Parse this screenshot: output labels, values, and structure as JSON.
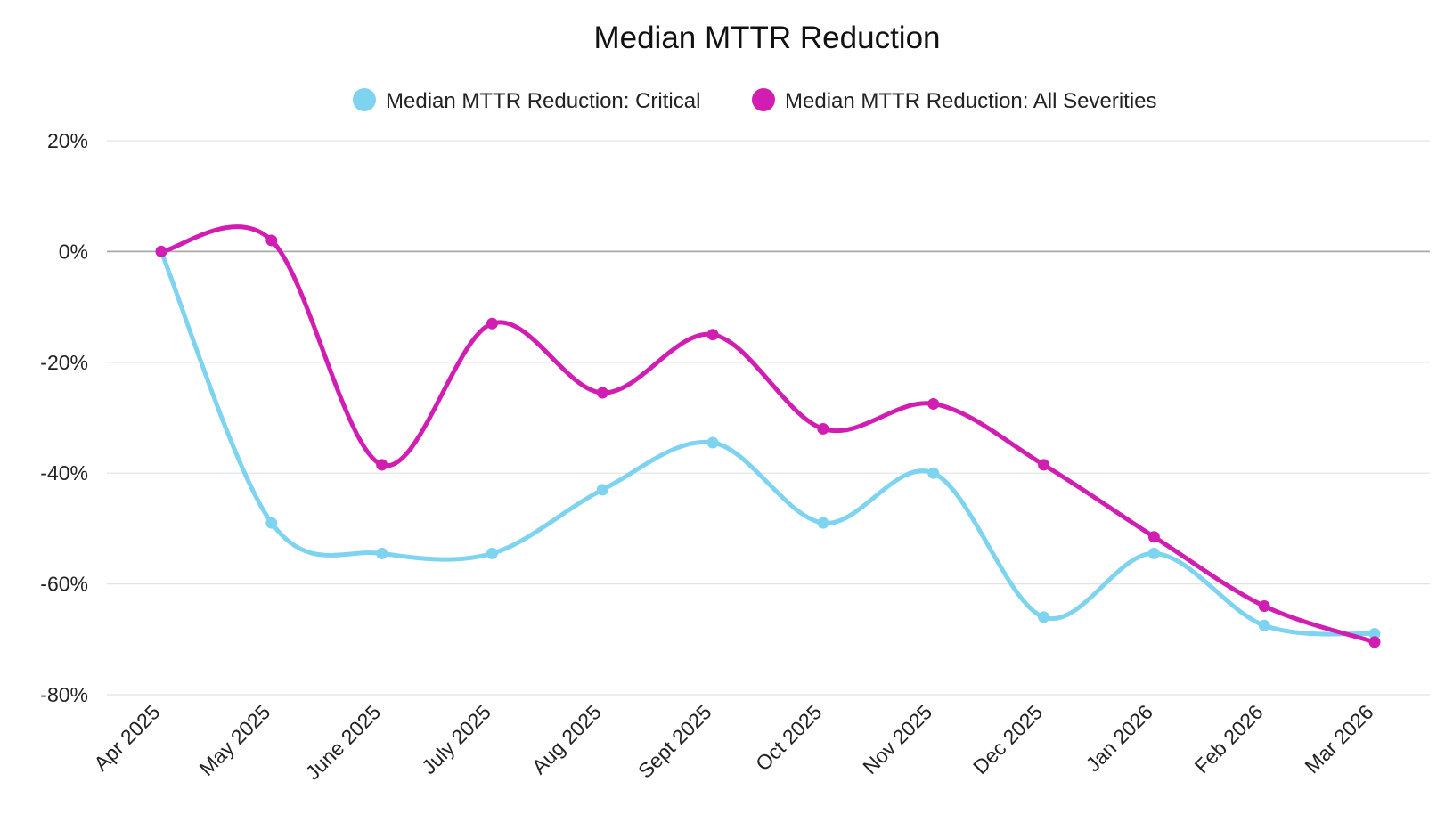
{
  "chart_data": {
    "type": "line",
    "title": "Median MTTR Reduction",
    "categories": [
      "Apr 2025",
      "May 2025",
      "June 2025",
      "July 2025",
      "Aug 2025",
      "Sept 2025",
      "Oct 2025",
      "Nov 2025",
      "Dec 2025",
      "Jan 2026",
      "Feb 2026",
      "Mar 2026"
    ],
    "series": [
      {
        "name": "Median MTTR Reduction: Critical",
        "color": "#7dd3f0",
        "values": [
          0,
          -49,
          -54.5,
          -54.5,
          -43,
          -34.5,
          -49,
          -40,
          -66,
          -54.5,
          -67.5,
          -69
        ]
      },
      {
        "name": "Median MTTR Reduction: All Severities",
        "color": "#d21db3",
        "values": [
          0,
          2,
          -38.5,
          -13,
          -25.5,
          -15,
          -32,
          -27.5,
          -38.5,
          -51.5,
          -64,
          -70.5
        ]
      }
    ],
    "ylim": [
      -80,
      20
    ],
    "yticks": [
      20,
      0,
      -20,
      -40,
      -60,
      -80
    ],
    "ytick_labels": [
      "20%",
      "0%",
      "-20%",
      "-40%",
      "-60%",
      "-80%"
    ],
    "xlabel": "",
    "ylabel": "",
    "legend_position": "top-center",
    "grid": true,
    "zero_line_color": "#a9a9a9",
    "grid_color": "#e3e3e3"
  }
}
